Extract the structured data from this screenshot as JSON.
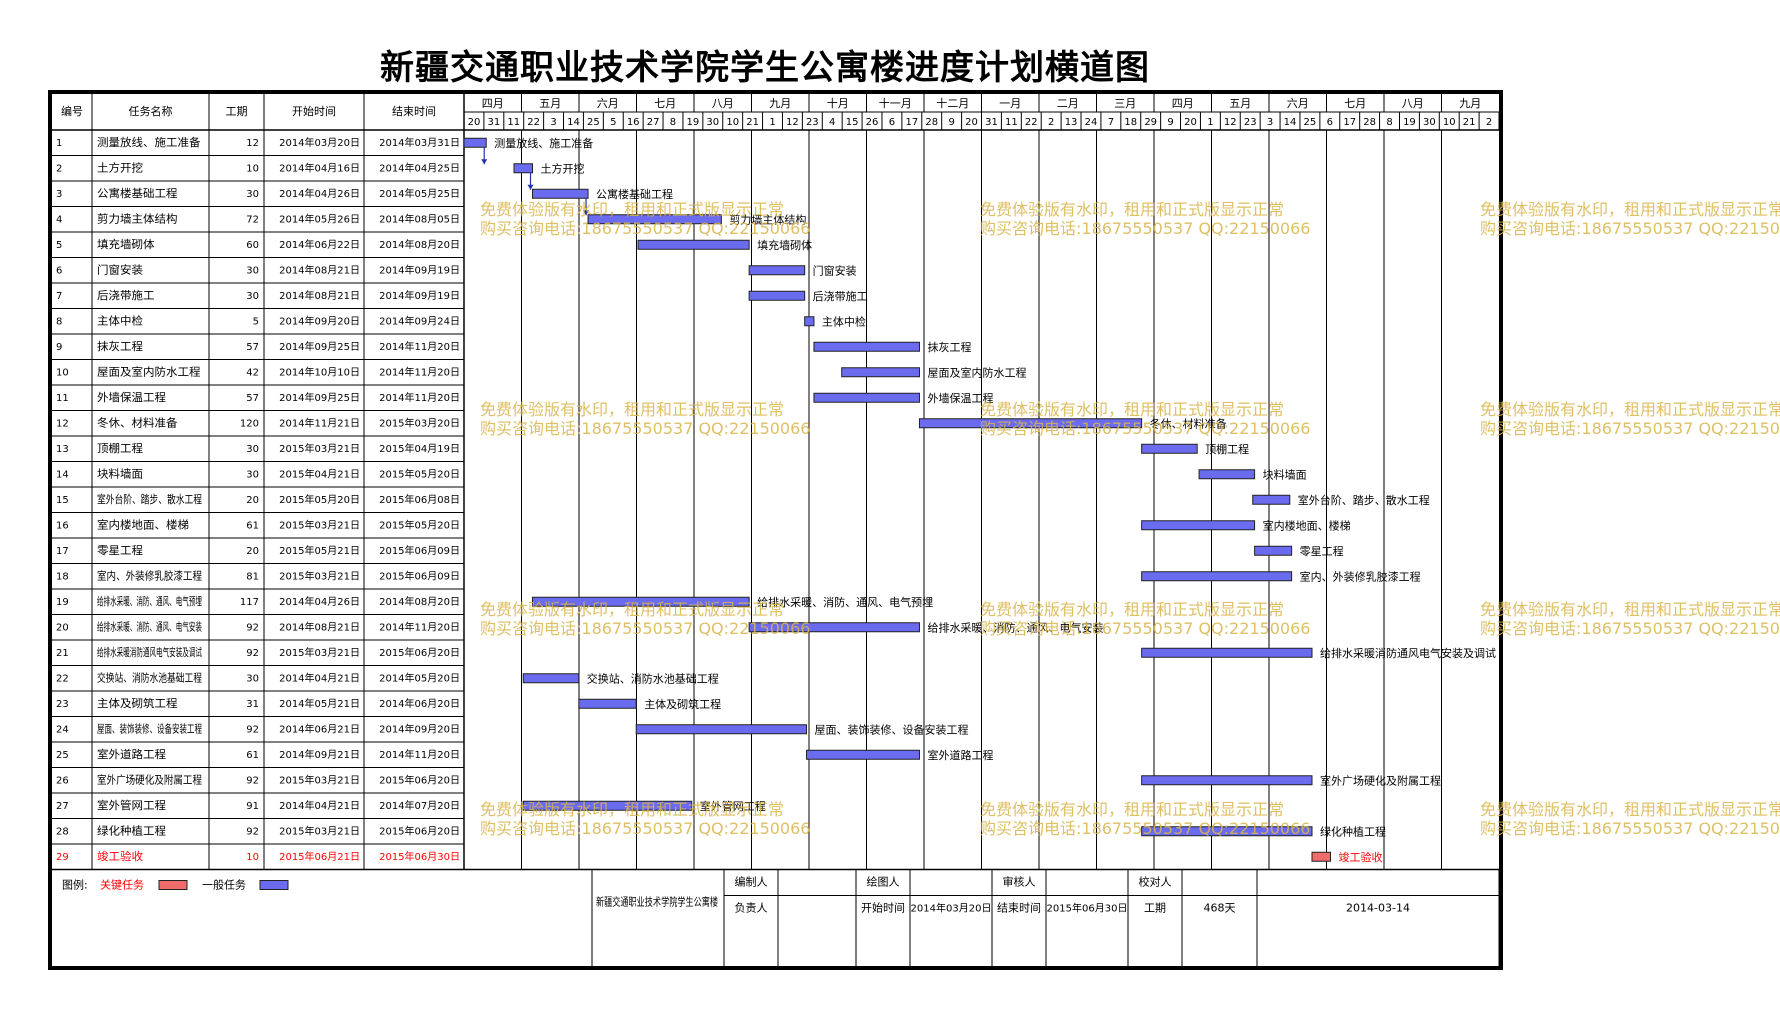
{
  "title": "新疆交通职业技术学院学生公寓楼进度计划横道图",
  "colors": {
    "general_bar": "#6b6bf0",
    "critical_bar": "#f06b6b",
    "critical_text": "#ff0000",
    "watermark": "#d9b54a"
  },
  "headers": {
    "id": "编号",
    "name": "任务名称",
    "duration": "工期",
    "start": "开始时间",
    "end": "结束时间"
  },
  "timeline": {
    "months": [
      "四月",
      "五月",
      "六月",
      "七月",
      "八月",
      "九月",
      "十月",
      "十一月",
      "十二月",
      "一月",
      "二月",
      "三月",
      "四月",
      "五月",
      "六月",
      "七月",
      "八月",
      "九月"
    ],
    "days": [
      "20",
      "31",
      "11",
      "22",
      "3",
      "14",
      "25",
      "5",
      "16",
      "27",
      "8",
      "19",
      "30",
      "10",
      "21",
      "1",
      "12",
      "23",
      "4",
      "15",
      "26",
      "6",
      "17",
      "28",
      "9",
      "20",
      "31",
      "11",
      "22",
      "2",
      "13",
      "24",
      "7",
      "18",
      "29",
      "9",
      "20",
      "1",
      "12",
      "23",
      "3",
      "14",
      "25",
      "6",
      "17",
      "28",
      "8",
      "19",
      "30",
      "10",
      "21",
      "2"
    ]
  },
  "chart_data": {
    "type": "gantt",
    "title": "新疆交通职业技术学院学生公寓楼进度计划横道图",
    "tasks": [
      {
        "id": "1",
        "name": "测量放线、施工准备",
        "duration": "12",
        "start": "2014年03月20日",
        "end": "2014年03月31日",
        "label": "测量放线、施工准备",
        "critical": false
      },
      {
        "id": "2",
        "name": "土方开挖",
        "duration": "10",
        "start": "2014年04月16日",
        "end": "2014年04月25日",
        "label": "土方开挖",
        "critical": false
      },
      {
        "id": "3",
        "name": "公寓楼基础工程",
        "duration": "30",
        "start": "2014年04月26日",
        "end": "2014年05月25日",
        "label": "公寓楼基础工程",
        "critical": false
      },
      {
        "id": "4",
        "name": "剪力墙主体结构",
        "duration": "72",
        "start": "2014年05月26日",
        "end": "2014年08月05日",
        "label": "剪力墙主体结构",
        "critical": false
      },
      {
        "id": "5",
        "name": "填充墙砌体",
        "duration": "60",
        "start": "2014年06月22日",
        "end": "2014年08月20日",
        "label": "填充墙砌体",
        "critical": false
      },
      {
        "id": "6",
        "name": "门窗安装",
        "duration": "30",
        "start": "2014年08月21日",
        "end": "2014年09月19日",
        "label": "门窗安装",
        "critical": false
      },
      {
        "id": "7",
        "name": "后浇带施工",
        "duration": "30",
        "start": "2014年08月21日",
        "end": "2014年09月19日",
        "label": "后浇带施工",
        "critical": false
      },
      {
        "id": "8",
        "name": "主体中检",
        "duration": "5",
        "start": "2014年09月20日",
        "end": "2014年09月24日",
        "label": "主体中检",
        "critical": false
      },
      {
        "id": "9",
        "name": "抹灰工程",
        "duration": "57",
        "start": "2014年09月25日",
        "end": "2014年11月20日",
        "label": "抹灰工程",
        "critical": false
      },
      {
        "id": "10",
        "name": "屋面及室内防水工程",
        "duration": "42",
        "start": "2014年10月10日",
        "end": "2014年11月20日",
        "label": "屋面及室内防水工程",
        "critical": false
      },
      {
        "id": "11",
        "name": "外墙保温工程",
        "duration": "57",
        "start": "2014年09月25日",
        "end": "2014年11月20日",
        "label": "外墙保温工程",
        "critical": false
      },
      {
        "id": "12",
        "name": "冬休、材料准备",
        "duration": "120",
        "start": "2014年11月21日",
        "end": "2015年03月20日",
        "label": "冬休、材料准备",
        "critical": false
      },
      {
        "id": "13",
        "name": "顶棚工程",
        "duration": "30",
        "start": "2015年03月21日",
        "end": "2015年04月19日",
        "label": "顶棚工程",
        "critical": false
      },
      {
        "id": "14",
        "name": "块料墙面",
        "duration": "30",
        "start": "2015年04月21日",
        "end": "2015年05月20日",
        "label": "块料墙面",
        "critical": false
      },
      {
        "id": "15",
        "name": "室外台阶、踏步、散水工程",
        "duration": "20",
        "start": "2015年05月20日",
        "end": "2015年06月08日",
        "label": "室外台阶、踏步、散水工程",
        "critical": false
      },
      {
        "id": "16",
        "name": "室内楼地面、楼梯",
        "duration": "61",
        "start": "2015年03月21日",
        "end": "2015年05月20日",
        "label": "室内楼地面、楼梯",
        "critical": false
      },
      {
        "id": "17",
        "name": "零星工程",
        "duration": "20",
        "start": "2015年05月21日",
        "end": "2015年06月09日",
        "label": "零星工程",
        "critical": false
      },
      {
        "id": "18",
        "name": "室内、外装修乳胶漆工程",
        "duration": "81",
        "start": "2015年03月21日",
        "end": "2015年06月09日",
        "label": "室内、外装修乳胶漆工程",
        "critical": false
      },
      {
        "id": "19",
        "name": "给排水采暖、消防、通风、电气预埋",
        "duration": "117",
        "start": "2014年04月26日",
        "end": "2014年08月20日",
        "label": "给排水采暖、消防、通风、电气预埋",
        "critical": false
      },
      {
        "id": "20",
        "name": "给排水采暖、消防、通风、电气安装",
        "duration": "92",
        "start": "2014年08月21日",
        "end": "2014年11月20日",
        "label": "给排水采暖、消防、通风、电气安装",
        "critical": false
      },
      {
        "id": "21",
        "name": "给排水采暖消防通风电气安装及调试",
        "duration": "92",
        "start": "2015年03月21日",
        "end": "2015年06月20日",
        "label": "给排水采暖消防通风电气安装及调试",
        "critical": false
      },
      {
        "id": "22",
        "name": "交换站、消防水池基础工程",
        "duration": "30",
        "start": "2014年04月21日",
        "end": "2014年05月20日",
        "label": "交换站、消防水池基础工程",
        "critical": false
      },
      {
        "id": "23",
        "name": "主体及砌筑工程",
        "duration": "31",
        "start": "2014年05月21日",
        "end": "2014年06月20日",
        "label": "主体及砌筑工程",
        "critical": false
      },
      {
        "id": "24",
        "name": "屋面、装饰装修、设备安装工程",
        "duration": "92",
        "start": "2014年06月21日",
        "end": "2014年09月20日",
        "label": "屋面、装饰装修、设备安装工程",
        "critical": false
      },
      {
        "id": "25",
        "name": "室外道路工程",
        "duration": "61",
        "start": "2014年09月21日",
        "end": "2014年11月20日",
        "label": "室外道路工程",
        "critical": false
      },
      {
        "id": "26",
        "name": "室外广场硬化及附属工程",
        "duration": "92",
        "start": "2015年03月21日",
        "end": "2015年06月20日",
        "label": "室外广场硬化及附属工程",
        "critical": false
      },
      {
        "id": "27",
        "name": "室外管网工程",
        "duration": "91",
        "start": "2014年04月21日",
        "end": "2014年07月20日",
        "label": "室外管网工程",
        "critical": false
      },
      {
        "id": "28",
        "name": "绿化种植工程",
        "duration": "92",
        "start": "2015年03月21日",
        "end": "2015年06月20日",
        "label": "绿化种植工程",
        "critical": false
      },
      {
        "id": "29",
        "name": "竣工验收",
        "duration": "10",
        "start": "2015年06月21日",
        "end": "2015年06月30日",
        "label": "竣工验收",
        "critical": true
      }
    ],
    "dependencies": [
      [
        1,
        2
      ],
      [
        2,
        3
      ],
      [
        3,
        4
      ]
    ]
  },
  "legend": {
    "label": "图例:",
    "critical": "关键任务",
    "general": "一般任务"
  },
  "footer": {
    "project": "新疆交通职业技术学院学生公寓楼",
    "editor_label": "编制人",
    "editor": "",
    "drawer_label": "绘图人",
    "drawer": "",
    "reviewer_label": "审核人",
    "reviewer": "",
    "checker_label": "校对人",
    "checker": "",
    "owner_label": "负责人",
    "owner": "",
    "start_label": "开始时间",
    "start": "2014年03月20日",
    "end_label": "结束时间",
    "end": "2015年06月30日",
    "duration_label": "工期",
    "duration": "468天",
    "date": "2014-03-14"
  },
  "watermark": {
    "line1": "免费体验版有水印，租用和正式版显示正常",
    "line2": "购买咨询电话:18675550537 QQ:22150066"
  }
}
